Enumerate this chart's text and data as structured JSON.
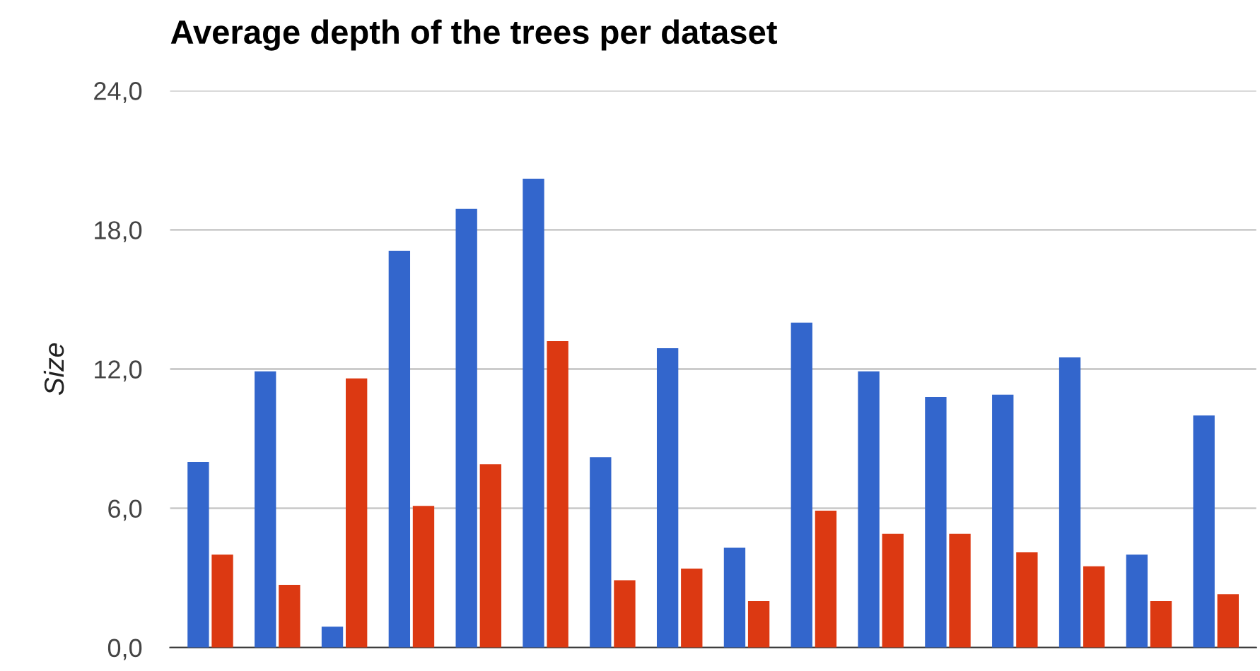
{
  "chart_data": {
    "type": "bar",
    "title": "Average depth of the trees per dataset",
    "ylabel": "Size",
    "categories": [
      null,
      null,
      null,
      null,
      null,
      null,
      null,
      null,
      null,
      null,
      null,
      null,
      null,
      null,
      null,
      null
    ],
    "series": [
      {
        "color": "#3366cc",
        "values": [
          8.0,
          11.9,
          0.9,
          17.1,
          18.9,
          20.2,
          8.2,
          12.9,
          4.3,
          14.0,
          11.9,
          10.8,
          10.9,
          12.5,
          4.0,
          10.0
        ]
      },
      {
        "color": "#dc3912",
        "values": [
          4.0,
          2.7,
          11.6,
          6.1,
          7.9,
          13.2,
          2.9,
          3.4,
          2.0,
          5.9,
          4.9,
          4.9,
          4.1,
          3.5,
          2.0,
          2.3
        ]
      }
    ],
    "ylim": [
      0,
      24
    ],
    "yticks": [
      {
        "value": 0,
        "label": "0,0"
      },
      {
        "value": 6,
        "label": "6,0"
      },
      {
        "value": 12,
        "label": "12,0"
      },
      {
        "value": 18,
        "label": "18,0"
      },
      {
        "value": 24,
        "label": "24,0"
      }
    ],
    "grid": "y",
    "legend": false
  }
}
